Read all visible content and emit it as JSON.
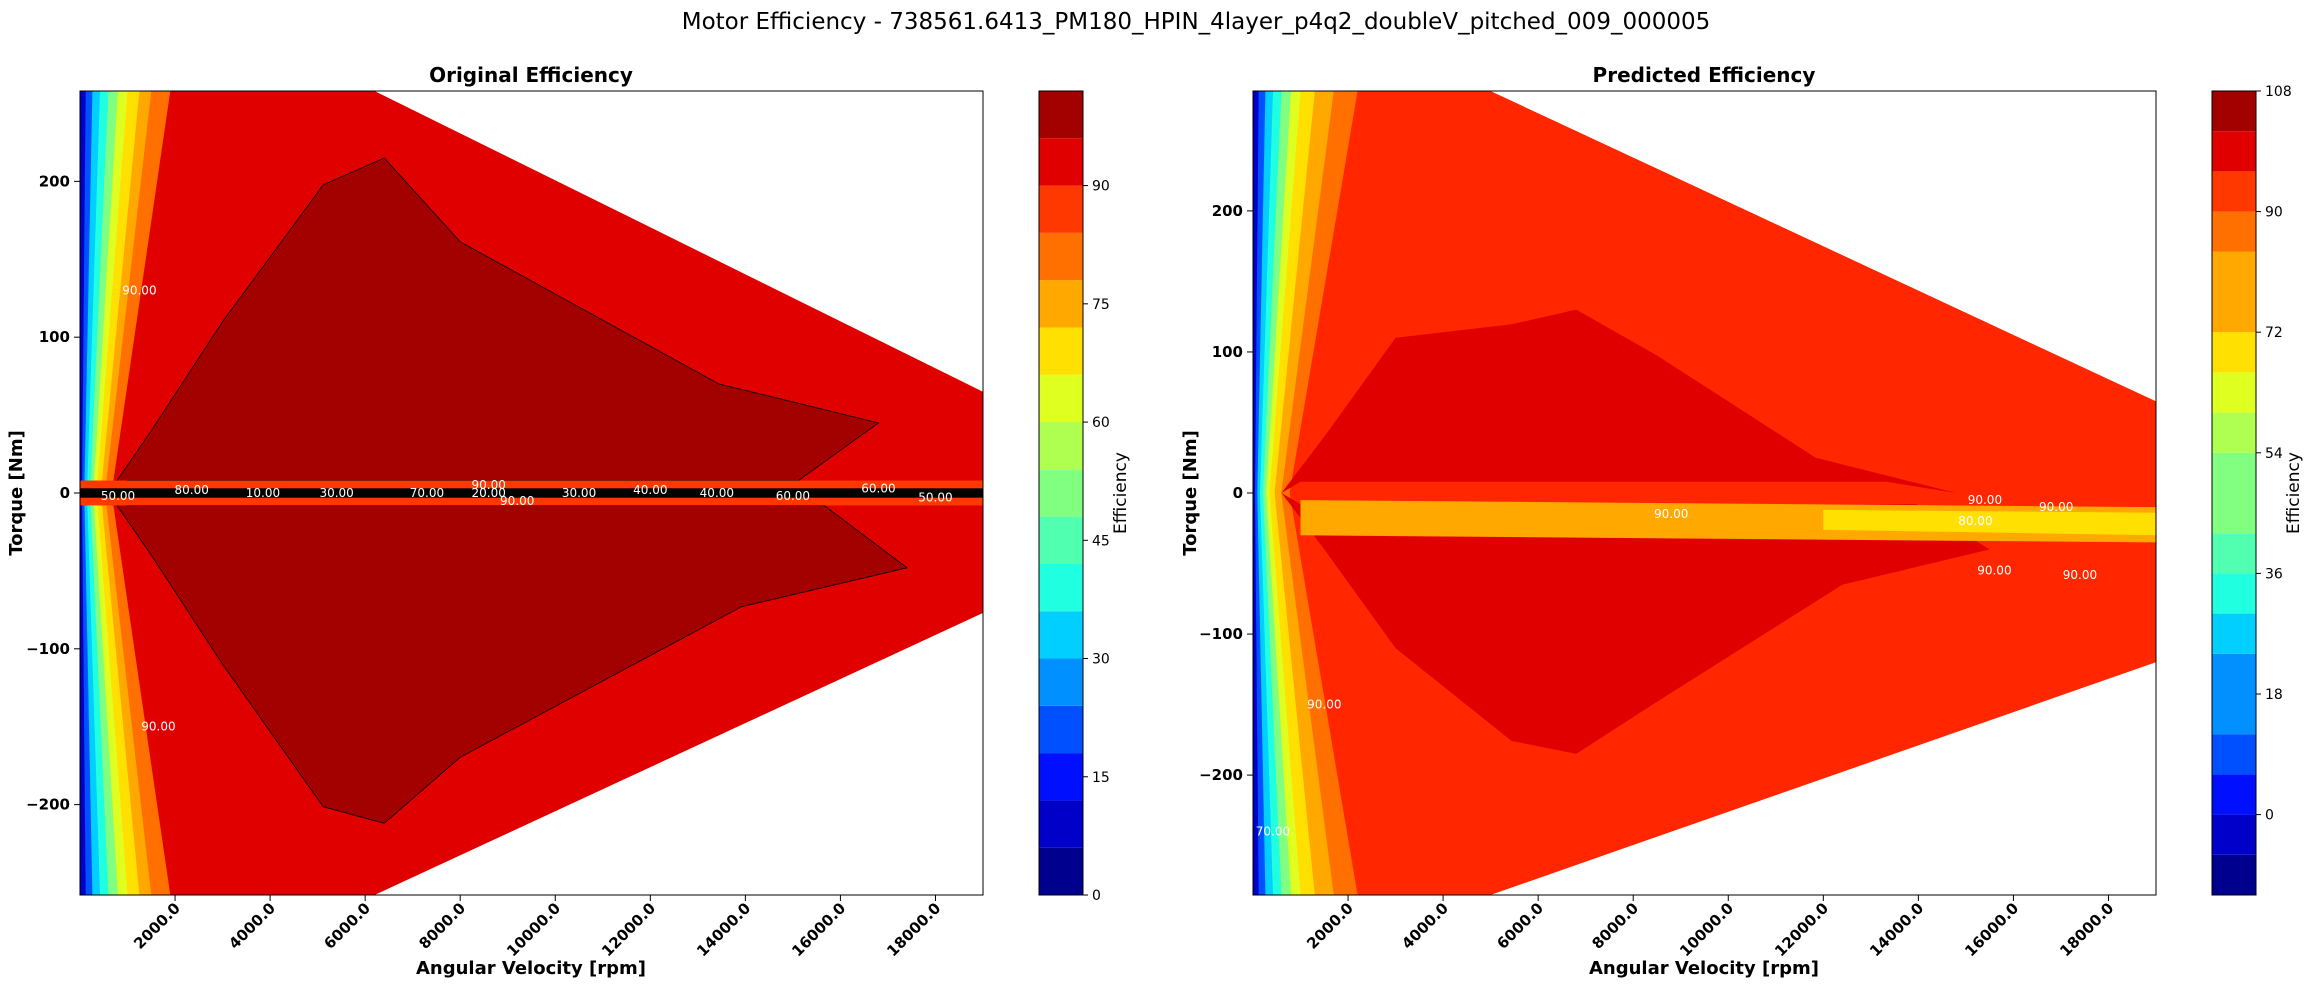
{
  "figure": {
    "title": "Motor Efficiency - 738561.6413_PM180_HPIN_4layer_p4q2_doubleV_pitched_009_000005"
  },
  "colors": {
    "jet": [
      "#00008f",
      "#0000c8",
      "#0010ff",
      "#0050ff",
      "#0090ff",
      "#00cfff",
      "#20ffdf",
      "#50ffaf",
      "#80ff80",
      "#afff50",
      "#dfff20",
      "#ffe000",
      "#ffa800",
      "#ff7000",
      "#ff3800",
      "#e00000",
      "#a30000"
    ],
    "contour_line": "#000000",
    "axis": "#000000"
  },
  "chart_data": [
    {
      "type": "heatmap",
      "title": "Original Efficiency",
      "xlabel": "Angular Velocity [rpm]",
      "ylabel": "Torque [Nm]",
      "xlim": [
        0,
        19000
      ],
      "ylim": [
        -258,
        258
      ],
      "x_ticks": [
        "2000.0",
        "4000.0",
        "6000.0",
        "8000.0",
        "10000.0",
        "12000.0",
        "14000.0",
        "16000.0",
        "18000.0"
      ],
      "x_tick_values": [
        2000,
        4000,
        6000,
        8000,
        10000,
        12000,
        14000,
        16000,
        18000
      ],
      "y_ticks": [
        "−200",
        "−100",
        "0",
        "100",
        "200"
      ],
      "y_tick_values": [
        -200,
        -100,
        0,
        100,
        200
      ],
      "colorbar": {
        "label": "Efficiency",
        "range": [
          0,
          102
        ],
        "levels": [
          0,
          6,
          12,
          18,
          24,
          30,
          36,
          42,
          48,
          54,
          60,
          66,
          72,
          78,
          84,
          90,
          96,
          102
        ],
        "ticks": [
          "0",
          "15",
          "30",
          "45",
          "60",
          "75",
          "90"
        ],
        "tick_values": [
          0,
          15,
          30,
          45,
          60,
          75,
          90
        ]
      },
      "envelope": {
        "base_torque": 258,
        "corner_speed": 6200,
        "max_speed": 19000,
        "torque_at_max_speed": 65,
        "torque_at_max_speed_negative": -77
      },
      "core_region": {
        "peak_speed": 6400,
        "peak_torque": 215,
        "tip_speed": 16800,
        "tip_torque": 45,
        "neg_peak_torque": -212,
        "neg_tip_speed": 17400,
        "neg_tip_torque": -48
      },
      "contour_labels": [
        {
          "text": "90.00",
          "x": 1250,
          "y": 130
        },
        {
          "text": "90.00",
          "x": 1650,
          "y": -150
        },
        {
          "text": "80.00",
          "x": 2350,
          "y": 2
        },
        {
          "text": "10.00",
          "x": 3850,
          "y": 0
        },
        {
          "text": "30.00",
          "x": 5400,
          "y": 0
        },
        {
          "text": "70.00",
          "x": 7300,
          "y": 0
        },
        {
          "text": "90.00",
          "x": 8600,
          "y": 5
        },
        {
          "text": "20.00",
          "x": 8600,
          "y": 0
        },
        {
          "text": "90.00",
          "x": 9200,
          "y": -5
        },
        {
          "text": "30.00",
          "x": 10500,
          "y": 0
        },
        {
          "text": "40.00",
          "x": 12000,
          "y": 2
        },
        {
          "text": "40.00",
          "x": 13400,
          "y": 0
        },
        {
          "text": "60.00",
          "x": 15000,
          "y": -2
        },
        {
          "text": "60.00",
          "x": 16800,
          "y": 3
        },
        {
          "text": "50.00",
          "x": 18000,
          "y": -3
        },
        {
          "text": "50.00",
          "x": 800,
          "y": -2
        }
      ]
    },
    {
      "type": "heatmap",
      "title": "Predicted Efficiency",
      "xlabel": "Angular Velocity [rpm]",
      "ylabel": "Torque [Nm]",
      "xlim": [
        0,
        19000
      ],
      "ylim": [
        -285,
        285
      ],
      "x_ticks": [
        "2000.0",
        "4000.0",
        "6000.0",
        "8000.0",
        "10000.0",
        "12000.0",
        "14000.0",
        "16000.0",
        "18000.0"
      ],
      "x_tick_values": [
        2000,
        4000,
        6000,
        8000,
        10000,
        12000,
        14000,
        16000,
        18000
      ],
      "y_ticks": [
        "−200",
        "−100",
        "0",
        "100",
        "200"
      ],
      "y_tick_values": [
        -200,
        -100,
        0,
        100,
        200
      ],
      "colorbar": {
        "label": "Efficiency",
        "range": [
          -12,
          108
        ],
        "levels": [
          -12,
          -6,
          0,
          6,
          12,
          18,
          24,
          30,
          36,
          42,
          48,
          54,
          60,
          66,
          72,
          78,
          84,
          90,
          96,
          102,
          108
        ],
        "ticks": [
          "0",
          "18",
          "36",
          "54",
          "72",
          "90",
          "108"
        ],
        "tick_values": [
          0,
          18,
          36,
          54,
          72,
          90,
          108
        ]
      },
      "envelope": {
        "base_torque": 285,
        "corner_speed": 5000,
        "max_speed": 19000,
        "torque_at_max_speed": 65,
        "torque_at_max_speed_negative": -120
      },
      "core_region": {
        "peak_speed": 6800,
        "peak_torque": 130,
        "tip_speed": 14800,
        "tip_torque": 0,
        "neg_peak_torque": -185,
        "neg_tip_speed": 15500,
        "neg_tip_torque": -40
      },
      "contour_labels": [
        {
          "text": "90.00",
          "x": 8800,
          "y": -15
        },
        {
          "text": "90.00",
          "x": 15400,
          "y": -5
        },
        {
          "text": "90.00",
          "x": 16900,
          "y": -10
        },
        {
          "text": "80.00",
          "x": 15200,
          "y": -20
        },
        {
          "text": "90.00",
          "x": 15600,
          "y": -55
        },
        {
          "text": "90.00",
          "x": 17400,
          "y": -58
        },
        {
          "text": "90.00",
          "x": 1500,
          "y": -150
        },
        {
          "text": "70.00",
          "x": 420,
          "y": -240
        }
      ]
    }
  ]
}
